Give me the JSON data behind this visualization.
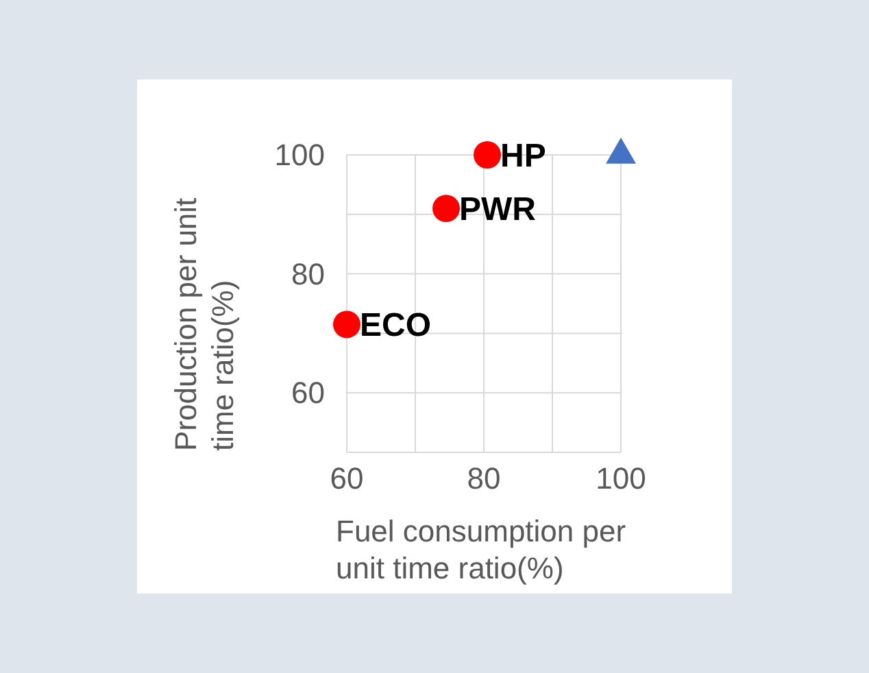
{
  "chart_data": {
    "type": "scatter",
    "xlabel": "Fuel consumption per unit time ratio(%)",
    "ylabel": "Production per unit time ratio(%)",
    "xlim": [
      60,
      100
    ],
    "xticks": [
      60,
      {
        "value": 70,
        "label": null
      },
      80,
      {
        "value": 90,
        "label": null
      },
      100
    ],
    "ylim": [
      50,
      100
    ],
    "yticks": [
      {
        "value": 50,
        "label": null
      },
      60,
      {
        "value": 70,
        "label": null
      },
      80,
      {
        "value": 90,
        "label": null
      },
      100
    ],
    "grid": true,
    "series": [
      {
        "name": "ECO",
        "color": "#ff0000",
        "marker": "circle",
        "x": [
          60
        ],
        "values": [
          71.5
        ]
      },
      {
        "name": "PWR",
        "color": "#ff0000",
        "marker": "circle",
        "x": [
          74.5
        ],
        "values": [
          91
        ]
      },
      {
        "name": "HP",
        "color": "#ff0000",
        "marker": "circle",
        "x": [
          80.5
        ],
        "values": [
          100
        ]
      },
      {
        "color": "#4472c4",
        "marker": "triangle",
        "x": [
          100
        ],
        "values": [
          100
        ]
      }
    ]
  }
}
